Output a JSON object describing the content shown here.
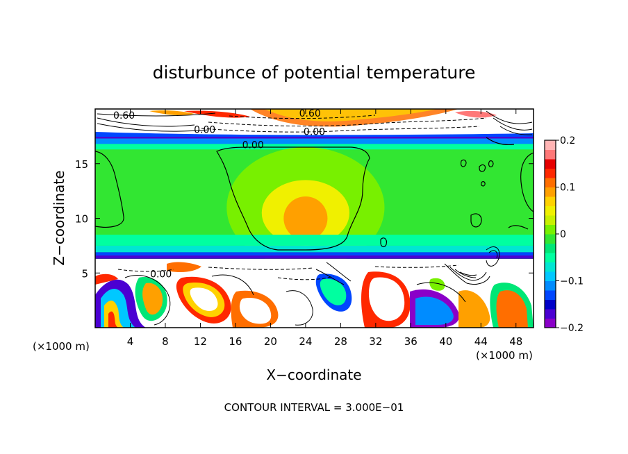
{
  "chart_data": {
    "type": "heatmap",
    "title": "disturbunce of potential temperature",
    "xlabel": "X−coordinate",
    "ylabel": "Z−coordinate",
    "x_unit_left": "(×1000 m)",
    "x_unit_right": "(×1000 m)",
    "footnote": "CONTOUR INTERVAL = 3.000E−01",
    "xlim": [
      0,
      50
    ],
    "ylim": [
      0,
      20
    ],
    "x_ticks": [
      4,
      8,
      12,
      16,
      20,
      24,
      28,
      32,
      36,
      40,
      44,
      48
    ],
    "y_ticks": [
      5,
      10,
      15
    ],
    "contour_labels": [
      {
        "text": "0.60",
        "x": 3.3,
        "y": 19.3
      },
      {
        "text": "0.60",
        "x": 24.5,
        "y": 19.5
      },
      {
        "text": "0.00",
        "x": 12.5,
        "y": 18.0
      },
      {
        "text": "0.00",
        "x": 25.0,
        "y": 17.8
      },
      {
        "text": "0.00",
        "x": 18.0,
        "y": 16.6
      },
      {
        "text": "0.00",
        "x": 7.5,
        "y": 4.8
      }
    ],
    "colorbar": {
      "min": -0.2,
      "max": 0.2,
      "tick_values": [
        -0.2,
        -0.1,
        0,
        0.1,
        0.2
      ],
      "tick_labels": [
        "−0.2",
        "−0.1",
        "0",
        "0.1",
        "0.2"
      ],
      "colors": [
        "#8a00c8",
        "#4b00d2",
        "#0000c8",
        "#0046ff",
        "#008cff",
        "#00c8ff",
        "#00e6d2",
        "#00ffa0",
        "#00e676",
        "#32e632",
        "#78f000",
        "#c8f000",
        "#f0f000",
        "#ffd200",
        "#ffa000",
        "#ff6e00",
        "#ff2800",
        "#e60000",
        "#ff7878",
        "#ffb4b4"
      ]
    },
    "background_value": -0.02,
    "regions": [
      {
        "type": "band",
        "y0": 17.3,
        "y1": 17.6,
        "value": -0.17
      },
      {
        "type": "band",
        "y0": 16.8,
        "y1": 17.3,
        "value": -0.12
      },
      {
        "type": "band",
        "y0": 16.3,
        "y1": 16.8,
        "value": -0.06
      },
      {
        "type": "blob",
        "x": 24,
        "y": 11,
        "rx": 9,
        "ry": 5.5,
        "value": 0.0
      },
      {
        "type": "blob",
        "x": 24,
        "y": 10.5,
        "rx": 5,
        "ry": 3,
        "value": 0.05
      },
      {
        "type": "blob",
        "x": 24,
        "y": 10,
        "rx": 2.5,
        "ry": 2,
        "value": 0.08
      },
      {
        "type": "band",
        "y0": 7.5,
        "y1": 8.5,
        "value": -0.05
      },
      {
        "type": "band",
        "y0": 6.9,
        "y1": 7.5,
        "value": -0.08
      },
      {
        "type": "band",
        "y0": 6.6,
        "y1": 6.9,
        "value": -0.13
      },
      {
        "type": "band",
        "y0": 6.3,
        "y1": 6.6,
        "value": -0.18
      }
    ]
  }
}
